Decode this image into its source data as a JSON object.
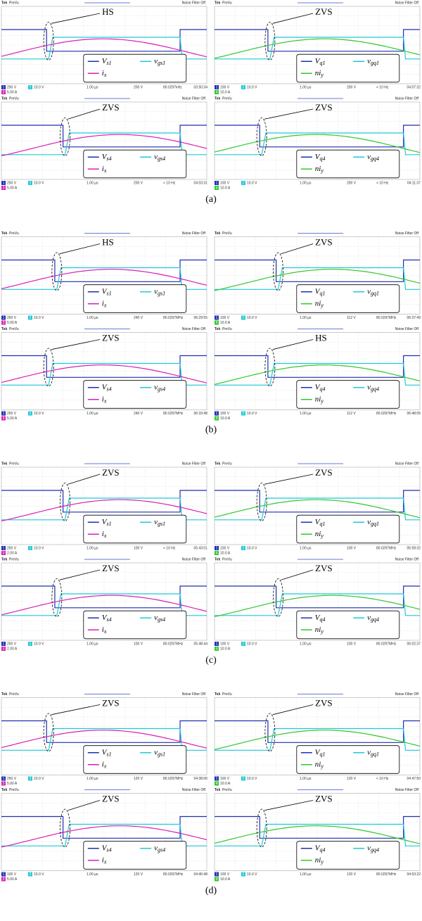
{
  "scope_header": {
    "brand": "Tek",
    "mode": "PreVu",
    "filter": "Noise Filter Off"
  },
  "groups": [
    {
      "label": "(a)",
      "panels": [
        {
          "annotation": "HS",
          "channels": [
            "1",
            "2",
            "3"
          ],
          "legend": [
            {
              "symbol": "V",
              "sub": "s1"
            },
            {
              "symbol": "v",
              "sub": "gs1"
            },
            {
              "symbol": "i",
              "sub": "x"
            }
          ],
          "scales": [
            "250 V",
            "10.0 V",
            "5.00 A"
          ],
          "timebase": "1.00 µs",
          "trigger": "200 V",
          "frequency": "80.0297kHz",
          "clock": "03:50:34"
        },
        {
          "annotation": "ZVS",
          "channels": [
            "1",
            "2",
            "4"
          ],
          "legend": [
            {
              "symbol": "V",
              "sub": "q1"
            },
            {
              "symbol": "v",
              "sub": "gq1"
            },
            {
              "symbol": "ni",
              "sub": "y"
            }
          ],
          "scales": [
            "100 V",
            "10.0 V",
            "10.0 A"
          ],
          "timebase": "1.00 µs",
          "trigger": "200 V",
          "frequency": "< 10 Hz",
          "clock": "04:07:32"
        },
        {
          "annotation": "ZVS",
          "channels": [
            "1",
            "2",
            "3"
          ],
          "legend": [
            {
              "symbol": "V",
              "sub": "s4"
            },
            {
              "symbol": "v",
              "sub": "gs4"
            },
            {
              "symbol": "i",
              "sub": "x"
            }
          ],
          "scales": [
            "250 V",
            "10.0 V",
            "5.00 A"
          ],
          "timebase": "1.00 µs",
          "trigger": "200 V",
          "frequency": "< 10 Hz",
          "clock": "04:03:31"
        },
        {
          "annotation": "ZVS",
          "channels": [
            "1",
            "2",
            "4"
          ],
          "legend": [
            {
              "symbol": "V",
              "sub": "q4"
            },
            {
              "symbol": "v",
              "sub": "gq4"
            },
            {
              "symbol": "ni",
              "sub": "y"
            }
          ],
          "scales": [
            "100 V",
            "10.0 V",
            "10.0 A"
          ],
          "timebase": "1.00 µs",
          "trigger": "200 V",
          "frequency": "< 10 Hz",
          "clock": "04:11:37"
        }
      ]
    },
    {
      "label": "(b)",
      "panels": [
        {
          "annotation": "HS",
          "channels": [
            "1",
            "2",
            "3"
          ],
          "legend": [
            {
              "symbol": "V",
              "sub": "s1"
            },
            {
              "symbol": "v",
              "sub": "gs1"
            },
            {
              "symbol": "i",
              "sub": "x"
            }
          ],
          "scales": [
            "250 V",
            "10.0 V",
            "5.00 A"
          ],
          "timebase": "1.00 µs",
          "trigger": "240 V",
          "frequency": "80.0297MHz",
          "clock": "06:29:55"
        },
        {
          "annotation": "ZVS",
          "channels": [
            "1",
            "2",
            "4"
          ],
          "legend": [
            {
              "symbol": "V",
              "sub": "q1"
            },
            {
              "symbol": "v",
              "sub": "gq1"
            },
            {
              "symbol": "ni",
              "sub": "y"
            }
          ],
          "scales": [
            "100 V",
            "10.0 V",
            "10.0 A"
          ],
          "timebase": "1.00 µs",
          "trigger": "112 V",
          "frequency": "80.0297MHz",
          "clock": "06:37:49"
        },
        {
          "annotation": "ZVS",
          "channels": [
            "1",
            "2",
            "3"
          ],
          "legend": [
            {
              "symbol": "V",
              "sub": "s4"
            },
            {
              "symbol": "v",
              "sub": "gs4"
            },
            {
              "symbol": "i",
              "sub": "x"
            }
          ],
          "scales": [
            "250 V",
            "10.0 V",
            "5.00 A"
          ],
          "timebase": "1.00 µs",
          "trigger": "240 V",
          "frequency": "80.0297MHz",
          "clock": "06:33:48"
        },
        {
          "annotation": "HS",
          "channels": [
            "1",
            "2",
            "4"
          ],
          "legend": [
            {
              "symbol": "V",
              "sub": "q4"
            },
            {
              "symbol": "v",
              "sub": "gq4"
            },
            {
              "symbol": "ni",
              "sub": "y"
            }
          ],
          "scales": [
            "100 V",
            "10.0 V",
            "10.0 A"
          ],
          "timebase": "1.00 µs",
          "trigger": "112 V",
          "frequency": "80.0297MHz",
          "clock": "06:48:05"
        }
      ]
    },
    {
      "label": "(c)",
      "panels": [
        {
          "annotation": "ZVS",
          "channels": [
            "1",
            "2",
            "3"
          ],
          "legend": [
            {
              "symbol": "V",
              "sub": "s1"
            },
            {
              "symbol": "v",
              "sub": "gs1"
            },
            {
              "symbol": "i",
              "sub": "x"
            }
          ],
          "scales": [
            "250 V",
            "10.0 V",
            "2.00 A"
          ],
          "timebase": "1.00 µs",
          "trigger": "100 V",
          "frequency": "< 10 Hz",
          "clock": "05:43:01"
        },
        {
          "annotation": "ZVS",
          "channels": [
            "1",
            "2",
            "4"
          ],
          "legend": [
            {
              "symbol": "V",
              "sub": "q1"
            },
            {
              "symbol": "v",
              "sub": "gq1"
            },
            {
              "symbol": "ni",
              "sub": "y"
            }
          ],
          "scales": [
            "100 V",
            "10.0 V",
            "10.0 A"
          ],
          "timebase": "1.00 µs",
          "trigger": "100 V",
          "frequency": "80.0297MHz",
          "clock": "05:58:32"
        },
        {
          "annotation": "ZVS",
          "channels": [
            "1",
            "2",
            "3"
          ],
          "legend": [
            {
              "symbol": "V",
              "sub": "s4"
            },
            {
              "symbol": "v",
              "sub": "gs4"
            },
            {
              "symbol": "i",
              "sub": "x"
            }
          ],
          "scales": [
            "250 V",
            "10.0 V",
            "2.00 A"
          ],
          "timebase": "1.00 µs",
          "trigger": "100 V",
          "frequency": "80.0297MHz",
          "clock": "05:48:44"
        },
        {
          "annotation": "ZVS",
          "channels": [
            "1",
            "2",
            "4"
          ],
          "legend": [
            {
              "symbol": "V",
              "sub": "q4"
            },
            {
              "symbol": "v",
              "sub": "gq4"
            },
            {
              "symbol": "ni",
              "sub": "y"
            }
          ],
          "scales": [
            "100 V",
            "10.0 V",
            "10.0 A"
          ],
          "timebase": "1.00 µs",
          "trigger": "100 V",
          "frequency": "80.0297MHz",
          "clock": "06:02:37"
        }
      ]
    },
    {
      "label": "(d)",
      "panels": [
        {
          "annotation": "ZVS",
          "channels": [
            "1",
            "2",
            "3"
          ],
          "legend": [
            {
              "symbol": "V",
              "sub": "s1"
            },
            {
              "symbol": "v",
              "sub": "gs1"
            },
            {
              "symbol": "i",
              "sub": "x"
            }
          ],
          "scales": [
            "250 V",
            "10.0 V",
            "5.00 A"
          ],
          "timebase": "1.00 µs",
          "trigger": "120 V",
          "frequency": "80.0297MHz",
          "clock": "04:38:06"
        },
        {
          "annotation": "ZVS",
          "channels": [
            "1",
            "2",
            "4"
          ],
          "legend": [
            {
              "symbol": "V",
              "sub": "q1"
            },
            {
              "symbol": "v",
              "sub": "gq1"
            },
            {
              "symbol": "ni",
              "sub": "y"
            }
          ],
          "scales": [
            "100 V",
            "10.0 V",
            "10.0 A"
          ],
          "timebase": "1.00 µs",
          "trigger": "120 V",
          "frequency": "< 10 Hz",
          "clock": "04:47:50"
        },
        {
          "annotation": "ZVS",
          "channels": [
            "1",
            "2",
            "3"
          ],
          "legend": [
            {
              "symbol": "V",
              "sub": "s4"
            },
            {
              "symbol": "v",
              "sub": "gs4"
            },
            {
              "symbol": "i",
              "sub": "x"
            }
          ],
          "scales": [
            "100 V",
            "10.0 V",
            "5.00 A"
          ],
          "timebase": "1.00 µs",
          "trigger": "120 V",
          "frequency": "80.0297MHz",
          "clock": "04:40:48"
        },
        {
          "annotation": "ZVS",
          "channels": [
            "1",
            "2",
            "4"
          ],
          "legend": [
            {
              "symbol": "V",
              "sub": "q4"
            },
            {
              "symbol": "v",
              "sub": "gq4"
            },
            {
              "symbol": "ni",
              "sub": "y"
            }
          ],
          "scales": [
            "100 V",
            "10.0 V",
            "10.0 A"
          ],
          "timebase": "1.00 µs",
          "trigger": "120 V",
          "frequency": "80.0297MHz",
          "clock": "04:53:22"
        }
      ]
    }
  ]
}
